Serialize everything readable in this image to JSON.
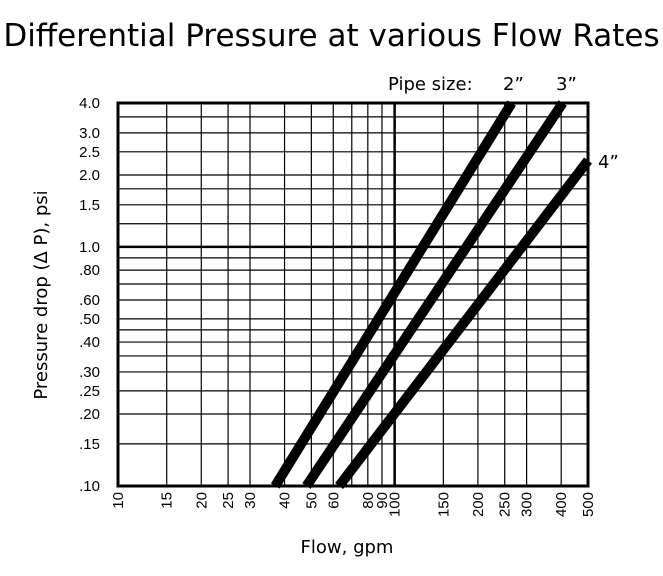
{
  "chart_data": {
    "type": "line",
    "title": "Differential Pressure at various Flow Rates",
    "xlabel": "Flow, gpm",
    "ylabel": "Pressure drop (Δ P), psi",
    "xscale": "log",
    "yscale": "log",
    "xlim": [
      10,
      500
    ],
    "ylim": [
      0.1,
      4.0
    ],
    "x_ticks": [
      10,
      15,
      20,
      25,
      30,
      40,
      50,
      60,
      80,
      90,
      100,
      150,
      200,
      250,
      300,
      400,
      500
    ],
    "x_tick_labels": [
      "10",
      "15",
      "20",
      "25",
      "30",
      "40",
      "50",
      "60",
      "80",
      "90",
      "100",
      "150",
      "200",
      "250",
      "300",
      "400",
      "500"
    ],
    "y_ticks": [
      0.1,
      0.15,
      0.2,
      0.25,
      0.3,
      0.4,
      0.5,
      0.6,
      0.8,
      1.0,
      1.5,
      2.0,
      2.5,
      3.0,
      4.0
    ],
    "y_tick_labels": [
      ".10",
      ".15",
      ".20",
      ".25",
      ".30",
      ".40",
      ".50",
      ".60",
      ".80",
      "1.0",
      "1.5",
      "2.0",
      "2.5",
      "3.0",
      "4.0"
    ],
    "grid": true,
    "legend_title": "Pipe size:",
    "series": [
      {
        "name": "2”",
        "x": [
          37,
          265
        ],
        "y": [
          0.1,
          4.0
        ]
      },
      {
        "name": "3”",
        "x": [
          48,
          405
        ],
        "y": [
          0.1,
          4.0
        ]
      },
      {
        "name": "4”",
        "x": [
          63,
          500
        ],
        "y": [
          0.1,
          2.3
        ]
      }
    ]
  }
}
